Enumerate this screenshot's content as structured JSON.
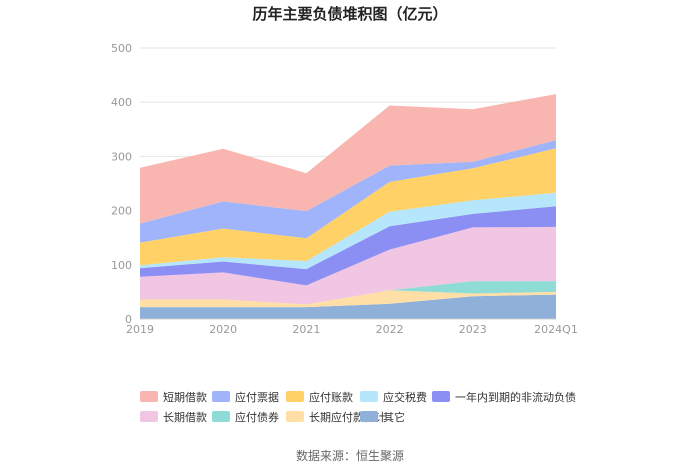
{
  "chart_data": {
    "type": "area",
    "stacked": true,
    "title": "历年主要负债堆积图（亿元）",
    "source": "数据来源：恒生聚源",
    "x": [
      "2019",
      "2020",
      "2021",
      "2022",
      "2023",
      "2024Q1"
    ],
    "yticks": [
      "0",
      "100",
      "200",
      "300",
      "400",
      "500"
    ],
    "ylim": [
      0,
      500
    ],
    "grid": true,
    "legend_position": "bottom",
    "series": [
      {
        "name": "其它",
        "color": "#8fb0d8",
        "values": [
          22,
          22,
          22,
          28,
          42,
          45
        ]
      },
      {
        "name": "长期应付款合计",
        "color": "#ffdfa6",
        "values": [
          14,
          14,
          5,
          25,
          5,
          5
        ]
      },
      {
        "name": "应付债券",
        "color": "#8fdcd6",
        "values": [
          0,
          0,
          0,
          0,
          23,
          20
        ]
      },
      {
        "name": "长期借款",
        "color": "#f0c6e2",
        "values": [
          42,
          50,
          35,
          75,
          99,
          100
        ]
      },
      {
        "name": "一年内到期的非流动负债",
        "color": "#8b8ef2",
        "values": [
          16,
          20,
          30,
          43,
          25,
          38
        ]
      },
      {
        "name": "应交税费",
        "color": "#b6e6fb",
        "values": [
          5,
          8,
          15,
          27,
          25,
          25
        ]
      },
      {
        "name": "应付账款",
        "color": "#ffd166",
        "values": [
          42,
          53,
          42,
          55,
          59,
          82
        ]
      },
      {
        "name": "应付票据",
        "color": "#9fb4fb",
        "values": [
          35,
          50,
          50,
          30,
          12,
          15
        ]
      },
      {
        "name": "短期借款",
        "color": "#f9b6b0",
        "values": [
          103,
          97,
          70,
          111,
          97,
          85
        ]
      }
    ]
  }
}
